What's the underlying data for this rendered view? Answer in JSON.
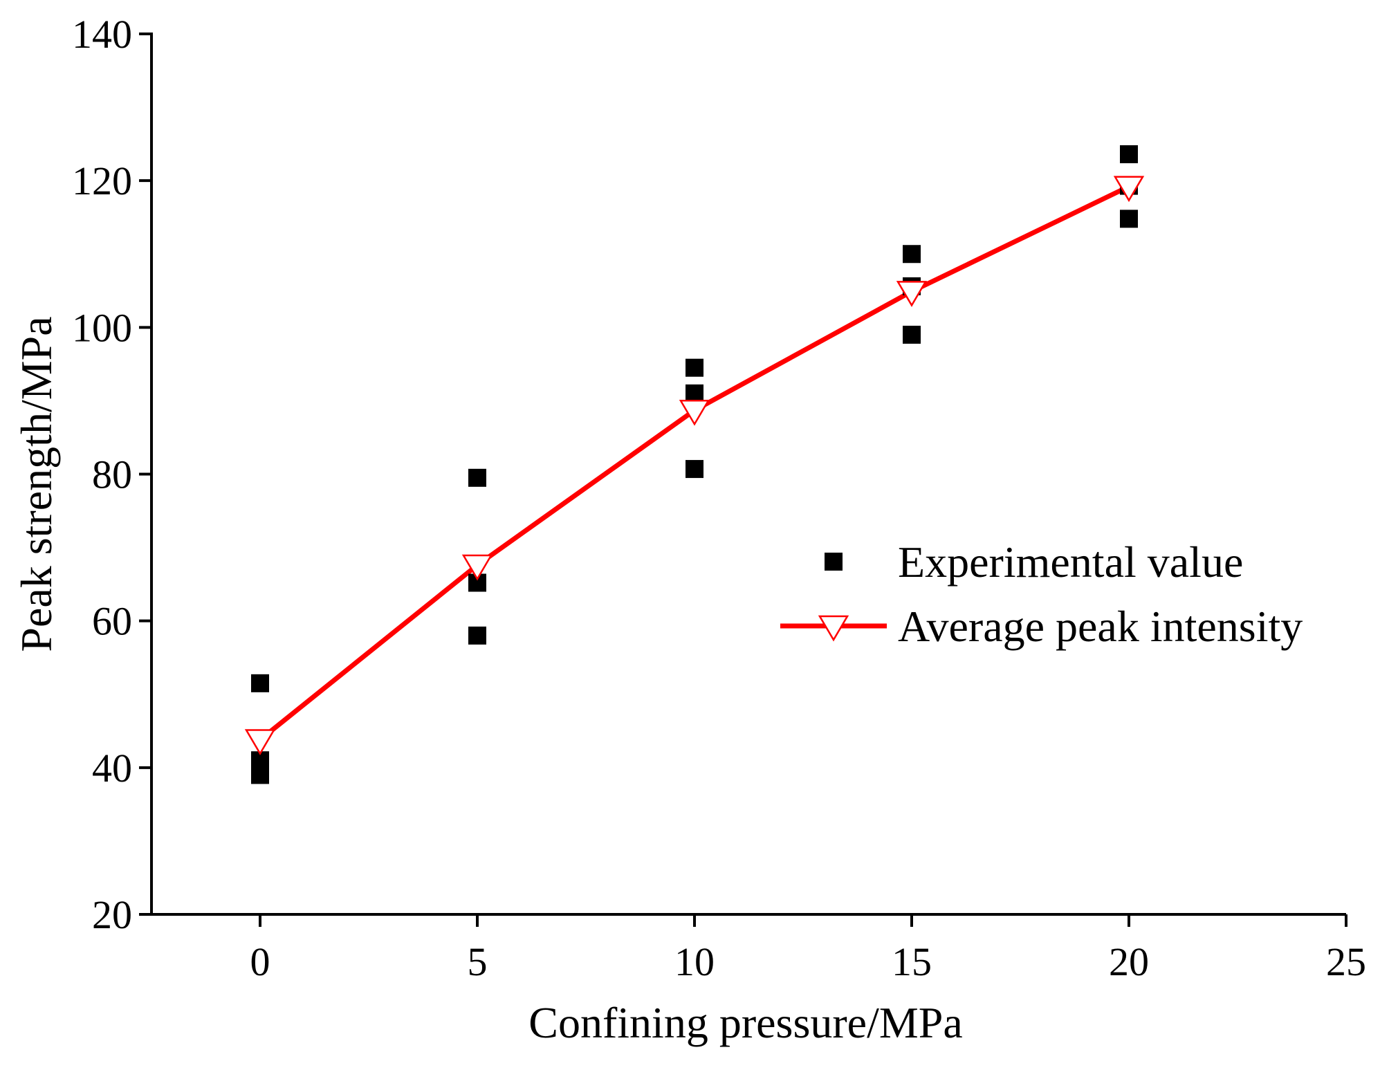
{
  "chart_data": {
    "type": "scatter",
    "title": "",
    "xlabel": "Confining pressure/MPa",
    "ylabel": "Peak strength/MPa",
    "xlim": [
      -2.5,
      25
    ],
    "ylim": [
      20,
      140
    ],
    "x_ticks": [
      0,
      5,
      10,
      15,
      20,
      25
    ],
    "y_ticks": [
      20,
      40,
      60,
      80,
      100,
      120,
      140
    ],
    "x_tick_labels": [
      "0",
      "5",
      "10",
      "15",
      "20",
      "25"
    ],
    "y_tick_labels": [
      "20",
      "40",
      "60",
      "80",
      "100",
      "120",
      "140"
    ],
    "grid": false,
    "legend_position": "center-right",
    "series": [
      {
        "name": "Experimental value",
        "kind": "scatter",
        "marker": "square",
        "color": "#000000",
        "points": [
          {
            "x": 0,
            "y": 51.5
          },
          {
            "x": 0,
            "y": 41.0
          },
          {
            "x": 0,
            "y": 39.0
          },
          {
            "x": 5,
            "y": 79.5
          },
          {
            "x": 5,
            "y": 65.2
          },
          {
            "x": 5,
            "y": 58.0
          },
          {
            "x": 10,
            "y": 94.5
          },
          {
            "x": 10,
            "y": 91.0
          },
          {
            "x": 10,
            "y": 80.7
          },
          {
            "x": 15,
            "y": 110.0
          },
          {
            "x": 15,
            "y": 105.6
          },
          {
            "x": 15,
            "y": 99.0
          },
          {
            "x": 20,
            "y": 123.6
          },
          {
            "x": 20,
            "y": 119.3
          },
          {
            "x": 20,
            "y": 114.8
          }
        ]
      },
      {
        "name": "Average peak intensity",
        "kind": "line",
        "marker": "triangle-down-open",
        "color": "#ff0000",
        "points": [
          {
            "x": 0,
            "y": 43.8
          },
          {
            "x": 5,
            "y": 67.6
          },
          {
            "x": 10,
            "y": 88.7
          },
          {
            "x": 15,
            "y": 104.9
          },
          {
            "x": 20,
            "y": 119.2
          }
        ]
      }
    ]
  }
}
